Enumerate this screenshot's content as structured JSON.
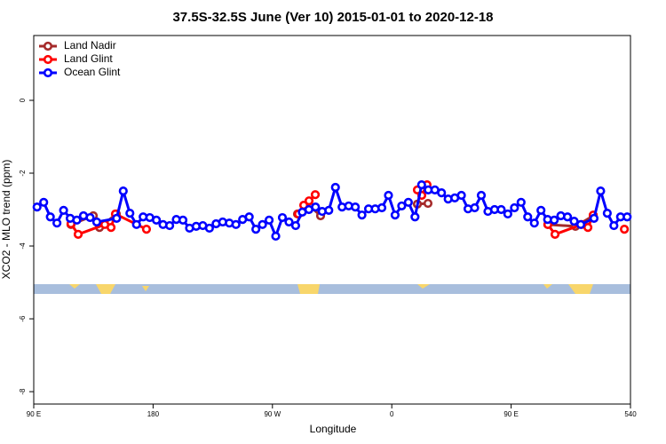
{
  "chart_data": {
    "type": "line",
    "title": "37.5S-32.5S June (Ver 10)   2015-01-01 to 2020-12-18",
    "x_label": "Longitude",
    "y_label": "XCO2 - MLO trend (ppm)",
    "xlim": [
      90,
      540
    ],
    "ylim": [
      -8.34,
      1.78
    ],
    "xticks": [
      {
        "value": 90,
        "label": "90 E"
      },
      180,
      {
        "value": 270,
        "label": "90 W"
      },
      {
        "value": 360,
        "label": "0"
      },
      {
        "value": 450,
        "label": "90 E"
      },
      540
    ],
    "yticks": [
      -8,
      -6,
      -4,
      -2,
      0
    ],
    "legend": "topleft",
    "series": [
      {
        "name": "Land Nadir",
        "color": "#a52a2a",
        "x": [
          118.1,
          134.9,
          139.6,
          152.3,
          null,
          288.9,
          297.6,
          306.3,
          null,
          379.3,
          387.3,
          null,
          477.7,
          498.5,
          511.9
        ],
        "values": [
          -3.41,
          -3.17,
          -3.49,
          -3.12,
          null,
          -3.12,
          -2.88,
          -3.17,
          null,
          -2.85,
          -2.83,
          null,
          -3.41,
          -3.46,
          -3.17
        ]
      },
      {
        "name": "Land Glint",
        "color": "#ff0000",
        "x": [
          118.1,
          123.5,
          143.6,
          148.3,
          151.6,
          175.0,
          null,
          289.6,
          293.6,
          297.6,
          302.3,
          null,
          379.3,
          382.6,
          386.6,
          null,
          477.7,
          483.1,
          503.2,
          507.9,
          511.9,
          null,
          535.4
        ],
        "values": [
          -3.39,
          -3.68,
          -3.41,
          -3.49,
          -3.12,
          -3.54,
          null,
          -3.12,
          -2.88,
          -2.76,
          -2.59,
          null,
          -2.46,
          -2.61,
          -2.32,
          null,
          -3.41,
          -3.68,
          -3.41,
          -3.49,
          -3.15,
          null,
          -3.54
        ]
      },
      {
        "name": "Ocean Glint",
        "color": "#0000ff",
        "x": [
          92.5,
          97.5,
          102.5,
          107.5,
          112.5,
          117.5,
          122.5,
          127.5,
          132.5,
          137.5,
          152.5,
          157.5,
          162.5,
          167.5,
          172.5,
          177.5,
          182.5,
          187.5,
          192.5,
          197.5,
          202.5,
          207.5,
          212.5,
          217.5,
          222.5,
          227.5,
          232.5,
          237.5,
          242.5,
          247.5,
          252.5,
          257.5,
          262.5,
          267.5,
          272.5,
          277.5,
          282.5,
          287.5,
          292.5,
          297.5,
          302.5,
          307.5,
          312.5,
          317.5,
          322.5,
          327.5,
          332.5,
          337.5,
          342.5,
          347.5,
          352.5,
          357.5,
          362.5,
          367.5,
          372.5,
          377.5,
          382.5,
          387.5,
          392.5,
          397.5,
          402.5,
          407.5,
          412.5,
          417.5,
          422.5,
          427.5,
          432.5,
          437.5,
          442.5,
          447.5,
          452.5,
          457.5,
          462.5,
          467.5,
          472.5,
          477.5,
          482.5,
          487.5,
          492.5,
          497.5,
          502.5,
          512.5,
          517.5,
          522.5,
          527.5,
          532.5,
          537.5
        ],
        "values": [
          -2.93,
          -2.8,
          -3.2,
          -3.37,
          -3.02,
          -3.24,
          -3.29,
          -3.17,
          -3.22,
          -3.34,
          -3.24,
          -2.49,
          -3.1,
          -3.41,
          -3.2,
          -3.22,
          -3.29,
          -3.41,
          -3.44,
          -3.27,
          -3.29,
          -3.51,
          -3.46,
          -3.44,
          -3.51,
          -3.39,
          -3.34,
          -3.37,
          -3.41,
          -3.27,
          -3.2,
          -3.54,
          -3.41,
          -3.29,
          -3.73,
          -3.22,
          -3.34,
          -3.44,
          -3.07,
          -3.0,
          -2.93,
          -3.05,
          -3.02,
          -2.39,
          -2.93,
          -2.9,
          -2.93,
          -3.15,
          -2.98,
          -2.98,
          -2.95,
          -2.61,
          -3.15,
          -2.9,
          -2.8,
          -3.2,
          -2.32,
          -2.46,
          -2.46,
          -2.54,
          -2.71,
          -2.68,
          -2.61,
          -2.98,
          -2.95,
          -2.61,
          -3.05,
          -3.0,
          -3.0,
          -3.12,
          -2.95,
          -2.8,
          -3.2,
          -3.37,
          -3.02,
          -3.27,
          -3.29,
          -3.17,
          -3.2,
          -3.32,
          -3.41,
          -3.24,
          -2.49,
          -3.1,
          -3.44,
          -3.2,
          -3.2
        ]
      }
    ]
  }
}
